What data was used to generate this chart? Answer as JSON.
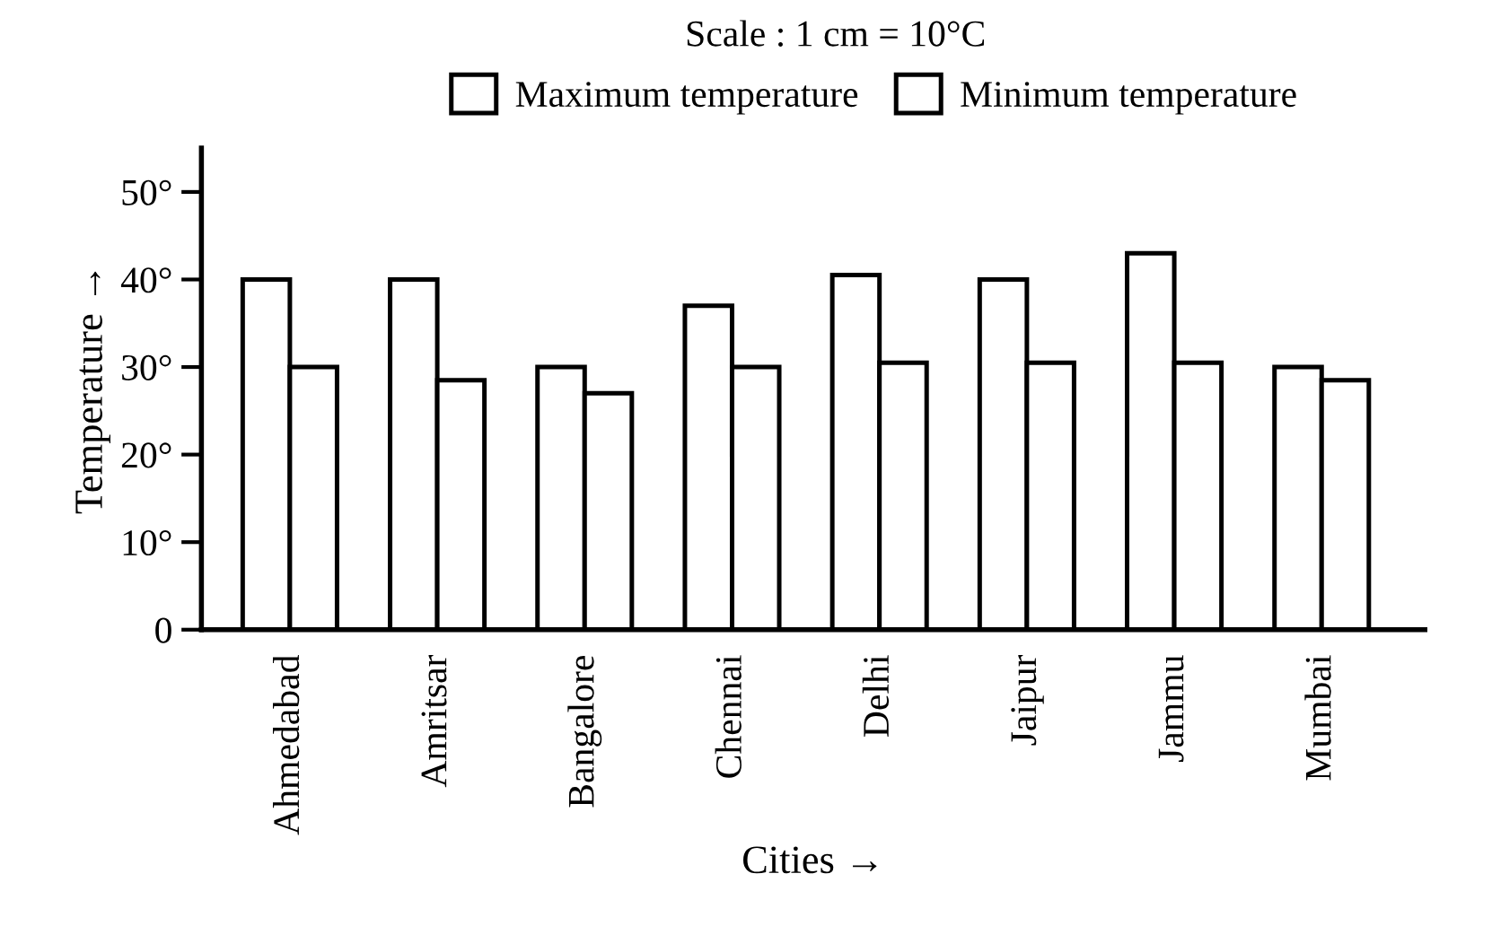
{
  "chart_data": {
    "type": "bar",
    "title": "Scale : 1 cm = 10°C",
    "xlabel": "Cities →",
    "ylabel": "Temperature →",
    "categories": [
      "Ahmedabad",
      "Amritsar",
      "Bangalore",
      "Chennai",
      "Delhi",
      "Jaipur",
      "Jammu",
      "Mumbai"
    ],
    "series": [
      {
        "name": "Maximum temperature",
        "color": "#ffffff",
        "values": [
          40,
          40,
          30,
          37,
          40.5,
          40,
          43,
          30
        ]
      },
      {
        "name": "Minimum temperature",
        "color": "#ffffff",
        "values": [
          30,
          28.5,
          27,
          30,
          30.5,
          30.5,
          30.5,
          28.5
        ]
      }
    ],
    "ylim": [
      0,
      55
    ],
    "yticks": [
      0,
      {
        "value": 10,
        "label": "10°"
      },
      {
        "value": 20,
        "label": "20°"
      },
      {
        "value": 30,
        "label": "30°"
      },
      {
        "value": 40,
        "label": "40°"
      },
      {
        "value": 50,
        "label": "50°"
      }
    ],
    "legend": "top",
    "grid": false
  }
}
